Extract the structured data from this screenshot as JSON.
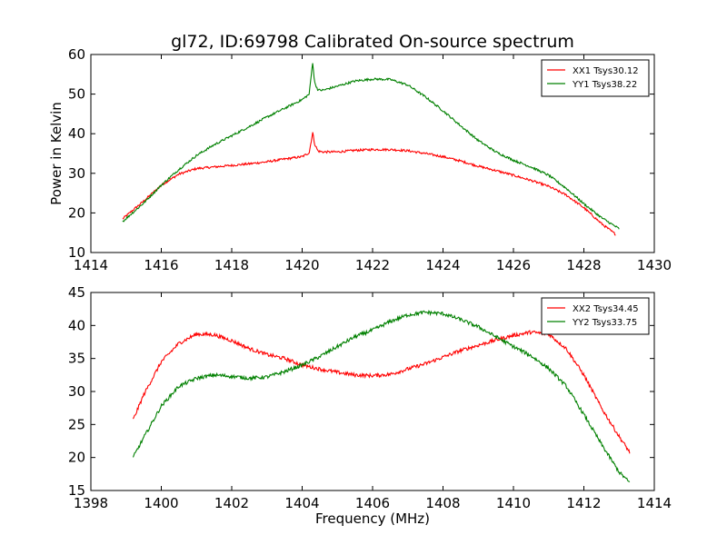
{
  "chart_data": [
    {
      "type": "line",
      "title": "gl72, ID:69798 Calibrated On-source spectrum",
      "xlabel": "",
      "ylabel": "Power in Kelvin",
      "xlim": [
        1414,
        1430
      ],
      "ylim": [
        10,
        60
      ],
      "xticks": [
        1414,
        1416,
        1418,
        1420,
        1422,
        1424,
        1426,
        1428,
        1430
      ],
      "yticks": [
        10,
        20,
        30,
        40,
        50,
        60
      ],
      "grid": false,
      "legend_position": "top-right",
      "series": [
        {
          "name": "XX1 Tsys30.12",
          "color": "#ff0000",
          "x": [
            1414.9,
            1415.5,
            1416.0,
            1416.5,
            1417.0,
            1417.5,
            1418.0,
            1418.5,
            1419.0,
            1419.5,
            1420.0,
            1420.2,
            1420.3,
            1420.35,
            1420.45,
            1420.6,
            1421.0,
            1421.5,
            1422.0,
            1422.5,
            1423.0,
            1423.5,
            1424.0,
            1424.5,
            1425.0,
            1425.5,
            1426.0,
            1426.5,
            1427.0,
            1427.5,
            1428.0,
            1428.5,
            1428.9
          ],
          "y": [
            18.5,
            23.0,
            27.0,
            29.8,
            31.2,
            31.6,
            32.0,
            32.4,
            32.9,
            33.6,
            34.2,
            35.2,
            40.3,
            37.5,
            35.6,
            35.4,
            35.4,
            35.8,
            36.0,
            36.0,
            35.7,
            35.0,
            34.2,
            33.1,
            31.8,
            30.7,
            29.5,
            28.2,
            26.7,
            24.5,
            21.3,
            17.3,
            14.6
          ]
        },
        {
          "name": "YY1 Tsys38.22",
          "color": "#008000",
          "x": [
            1414.9,
            1415.5,
            1416.0,
            1416.5,
            1417.0,
            1417.5,
            1418.0,
            1418.5,
            1419.0,
            1419.5,
            1420.0,
            1420.2,
            1420.3,
            1420.35,
            1420.45,
            1420.6,
            1421.0,
            1421.5,
            1422.0,
            1422.5,
            1423.0,
            1423.5,
            1424.0,
            1424.5,
            1425.0,
            1425.5,
            1426.0,
            1426.5,
            1427.0,
            1427.5,
            1428.0,
            1428.5,
            1429.0
          ],
          "y": [
            17.8,
            22.5,
            27.0,
            31.0,
            34.5,
            37.2,
            39.5,
            41.8,
            44.2,
            46.4,
            48.6,
            50.0,
            58.2,
            53.0,
            51.0,
            51.0,
            52.0,
            53.3,
            53.8,
            53.7,
            52.3,
            49.3,
            45.8,
            42.0,
            38.3,
            35.4,
            33.3,
            31.6,
            29.5,
            26.2,
            22.3,
            18.8,
            16.0
          ]
        }
      ]
    },
    {
      "type": "line",
      "title": "",
      "xlabel": "Frequency (MHz)",
      "ylabel": "",
      "xlim": [
        1398,
        1414
      ],
      "ylim": [
        15,
        45
      ],
      "xticks": [
        1398,
        1400,
        1402,
        1404,
        1406,
        1408,
        1410,
        1412,
        1414
      ],
      "yticks": [
        15,
        20,
        25,
        30,
        35,
        40,
        45
      ],
      "grid": false,
      "legend_position": "top-right",
      "series": [
        {
          "name": "XX2 Tsys34.45",
          "color": "#ff0000",
          "x": [
            1399.2,
            1399.5,
            1400.0,
            1400.5,
            1401.0,
            1401.5,
            1402.0,
            1402.5,
            1403.0,
            1403.5,
            1404.0,
            1404.5,
            1405.0,
            1405.5,
            1406.0,
            1406.5,
            1407.0,
            1407.5,
            1408.0,
            1408.5,
            1409.0,
            1409.5,
            1410.0,
            1410.5,
            1411.0,
            1411.5,
            1412.0,
            1412.5,
            1413.0,
            1413.3
          ],
          "y": [
            25.7,
            29.5,
            34.5,
            37.3,
            38.7,
            38.6,
            37.7,
            36.5,
            35.6,
            35.0,
            34.0,
            33.4,
            32.9,
            32.5,
            32.4,
            32.6,
            33.4,
            34.2,
            35.2,
            36.2,
            37.0,
            37.8,
            38.5,
            39.0,
            38.7,
            36.5,
            32.5,
            27.5,
            23.2,
            20.8
          ]
        },
        {
          "name": "YY2 Tsys33.75",
          "color": "#008000",
          "x": [
            1399.2,
            1399.5,
            1400.0,
            1400.5,
            1401.0,
            1401.5,
            1402.0,
            1402.5,
            1403.0,
            1403.5,
            1404.0,
            1404.5,
            1405.0,
            1405.5,
            1406.0,
            1406.5,
            1407.0,
            1407.5,
            1408.0,
            1408.5,
            1409.0,
            1409.5,
            1410.0,
            1410.5,
            1411.0,
            1411.5,
            1412.0,
            1412.5,
            1413.0,
            1413.3
          ],
          "y": [
            20.0,
            23.0,
            27.8,
            30.8,
            32.0,
            32.5,
            32.3,
            32.0,
            32.2,
            33.0,
            34.0,
            35.3,
            36.8,
            38.3,
            39.3,
            40.6,
            41.6,
            42.0,
            41.8,
            40.9,
            39.8,
            38.3,
            36.8,
            35.4,
            33.5,
            30.8,
            26.5,
            22.0,
            17.8,
            16.2
          ]
        }
      ]
    }
  ]
}
